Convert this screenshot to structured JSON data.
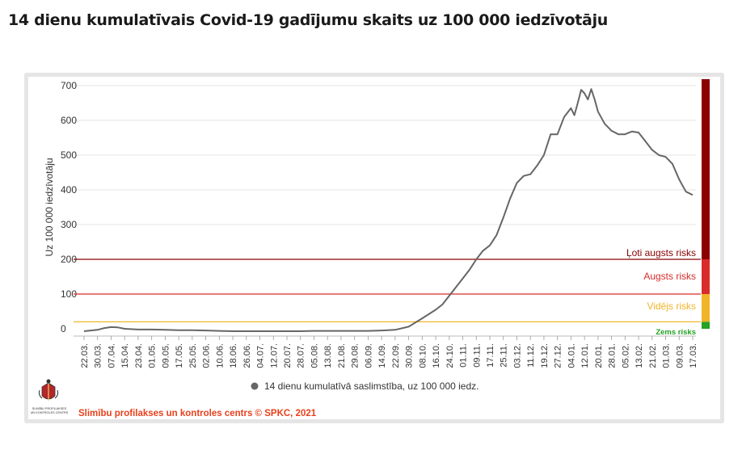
{
  "page": {
    "title": "14 dienu kumulatīvais Covid-19 gadījumu skaits uz 100 000 iedzīvotāju"
  },
  "footer": {
    "credit": "Slimību profilakses un kontroles centrs © SPKC, 2021",
    "logo_text": [
      "SLIMĪBU PROFILAKSES",
      "UN KONTROLES CENTRS"
    ]
  },
  "colors": {
    "line": "#666666",
    "very_high": "#8b0000",
    "high": "#d92b2b",
    "medium": "#f0b429",
    "low": "#24a324",
    "credit": "#e8401c"
  },
  "chart_data": {
    "type": "line",
    "ylabel": "Uz 100 000 iedzīvotāju",
    "ylim": [
      0,
      700
    ],
    "yticks": [
      0,
      100,
      200,
      300,
      400,
      500,
      600,
      700
    ],
    "grid": true,
    "legend_position": "bottom",
    "x_tick_labels": [
      "22.03.",
      "30.03.",
      "07.04.",
      "15.04.",
      "23.04.",
      "01.05.",
      "09.05.",
      "17.05.",
      "25.05.",
      "02.06.",
      "10.06.",
      "18.06.",
      "26.06.",
      "04.07.",
      "12.07.",
      "20.07.",
      "28.07.",
      "05.08.",
      "13.08.",
      "21.08.",
      "29.08.",
      "06.09.",
      "14.09.",
      "22.09.",
      "30.09.",
      "08.10.",
      "16.10.",
      "24.10.",
      "01.11.",
      "09.11.",
      "17.11.",
      "25.11.",
      "03.12.",
      "11.12.",
      "19.12.",
      "27.12.",
      "04.01.",
      "12.01.",
      "20.01.",
      "28.01.",
      "05.02.",
      "13.02.",
      "21.02.",
      "01.03.",
      "09.03.",
      "17.03."
    ],
    "series": [
      {
        "name": "14 dienu kumulatīvā saslimstība, uz 100 000 iedz.",
        "points": [
          [
            "22.03.",
            -7
          ],
          [
            "30.03.",
            -3
          ],
          [
            "03.04.",
            2
          ],
          [
            "07.04.",
            5
          ],
          [
            "11.04.",
            4
          ],
          [
            "15.04.",
            0
          ],
          [
            "23.04.",
            -2
          ],
          [
            "01.05.",
            -2
          ],
          [
            "09.05.",
            -3
          ],
          [
            "17.05.",
            -4
          ],
          [
            "25.05.",
            -4
          ],
          [
            "02.06.",
            -5
          ],
          [
            "10.06.",
            -6
          ],
          [
            "18.06.",
            -7
          ],
          [
            "26.06.",
            -7
          ],
          [
            "04.07.",
            -7
          ],
          [
            "12.07.",
            -7
          ],
          [
            "20.07.",
            -7
          ],
          [
            "28.07.",
            -7
          ],
          [
            "05.08.",
            -6
          ],
          [
            "13.08.",
            -6
          ],
          [
            "21.08.",
            -6
          ],
          [
            "29.08.",
            -6
          ],
          [
            "06.09.",
            -6
          ],
          [
            "14.09.",
            -5
          ],
          [
            "22.09.",
            -3
          ],
          [
            "30.09.",
            6
          ],
          [
            "08.10.",
            30
          ],
          [
            "16.10.",
            55
          ],
          [
            "20.10.",
            70
          ],
          [
            "24.10.",
            95
          ],
          [
            "28.10.",
            120
          ],
          [
            "01.11.",
            145
          ],
          [
            "05.11.",
            170
          ],
          [
            "09.11.",
            200
          ],
          [
            "13.11.",
            225
          ],
          [
            "17.11.",
            240
          ],
          [
            "21.11.",
            270
          ],
          [
            "25.11.",
            320
          ],
          [
            "29.11.",
            375
          ],
          [
            "03.12.",
            420
          ],
          [
            "07.12.",
            440
          ],
          [
            "11.12.",
            445
          ],
          [
            "15.12.",
            470
          ],
          [
            "19.12.",
            500
          ],
          [
            "23.12.",
            560
          ],
          [
            "27.12.",
            560
          ],
          [
            "31.12.",
            610
          ],
          [
            "04.01.",
            635
          ],
          [
            "06.01.",
            615
          ],
          [
            "08.01.",
            650
          ],
          [
            "10.01.",
            688
          ],
          [
            "12.01.",
            678
          ],
          [
            "14.01.",
            660
          ],
          [
            "16.01.",
            690
          ],
          [
            "18.01.",
            660
          ],
          [
            "20.01.",
            625
          ],
          [
            "24.01.",
            590
          ],
          [
            "28.01.",
            570
          ],
          [
            "01.02.",
            560
          ],
          [
            "05.02.",
            560
          ],
          [
            "09.02.",
            568
          ],
          [
            "13.02.",
            565
          ],
          [
            "17.02.",
            540
          ],
          [
            "21.02.",
            515
          ],
          [
            "25.02.",
            500
          ],
          [
            "01.03.",
            495
          ],
          [
            "05.03.",
            475
          ],
          [
            "09.03.",
            430
          ],
          [
            "13.03.",
            395
          ],
          [
            "17.03.",
            385
          ]
        ]
      }
    ],
    "risk_levels": [
      {
        "name": "Ļoti augsts risks",
        "from": 200,
        "to": 700,
        "line": 200,
        "color": "#8b0000"
      },
      {
        "name": "Augsts risks",
        "from": 100,
        "to": 200,
        "line": 100,
        "color": "#d92b2b"
      },
      {
        "name": "Vidējs risks",
        "from": 20,
        "to": 100,
        "line": 20,
        "color": "#f0b429"
      },
      {
        "name": "Zems risks",
        "from": 0,
        "to": 20,
        "line": null,
        "color": "#24a324"
      }
    ]
  }
}
